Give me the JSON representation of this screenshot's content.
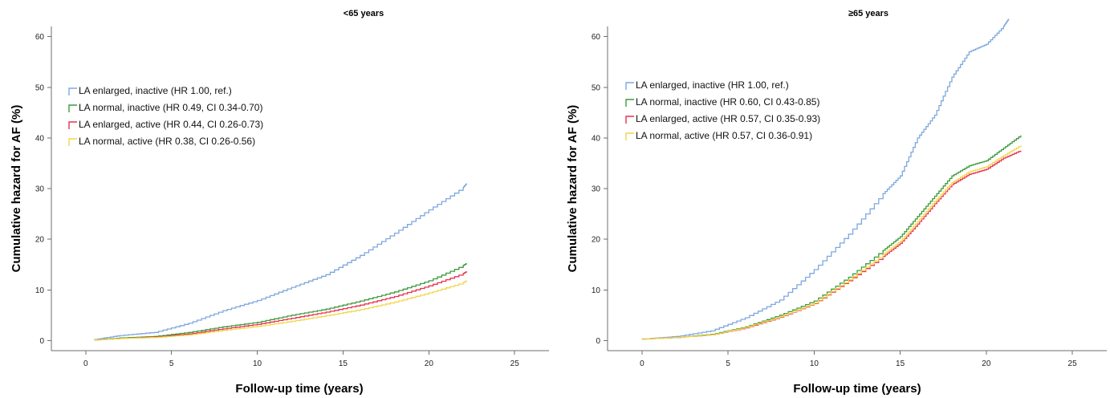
{
  "chart_data": [
    {
      "type": "line",
      "title": "<65 years",
      "xlabel": "Follow-up time (years)",
      "ylabel": "Cumulative hazard for AF (%)",
      "xlim": [
        -2,
        27
      ],
      "ylim": [
        -2,
        62
      ],
      "xticks": [
        0,
        5,
        10,
        15,
        20,
        25
      ],
      "yticks": [
        0,
        10,
        20,
        30,
        40,
        50,
        60
      ],
      "grid": false,
      "legend_position": "upper-left",
      "series": [
        {
          "name": "LA enlarged, inactive (HR 1.00, ref.)",
          "color": "#7ea8de",
          "x": [
            0.5,
            2,
            4,
            6,
            8,
            10,
            12,
            14,
            16,
            18,
            20,
            22,
            22.2
          ],
          "y": [
            0.2,
            1.0,
            1.6,
            3.4,
            5.9,
            7.9,
            10.5,
            13.0,
            16.8,
            21.2,
            25.8,
            30.2,
            31.0
          ]
        },
        {
          "name": "LA normal, inactive (HR 0.49, CI 0.34-0.70)",
          "color": "#3f9a3f",
          "x": [
            0.5,
            2,
            4,
            6,
            8,
            10,
            12,
            14,
            16,
            18,
            20,
            22,
            22.2
          ],
          "y": [
            0.1,
            0.5,
            0.8,
            1.6,
            2.7,
            3.6,
            5.0,
            6.2,
            7.8,
            9.6,
            11.8,
            14.8,
            15.2
          ]
        },
        {
          "name": "LA enlarged, active (HR 0.44, CI 0.26-0.73)",
          "color": "#e8314f",
          "x": [
            0.5,
            2,
            4,
            6,
            8,
            10,
            12,
            14,
            16,
            18,
            20,
            22,
            22.2
          ],
          "y": [
            0.1,
            0.4,
            0.7,
            1.3,
            2.3,
            3.2,
            4.4,
            5.6,
            7.0,
            8.7,
            10.8,
            13.2,
            13.6
          ]
        },
        {
          "name": "LA normal, active (HR 0.38, CI 0.26-0.56)",
          "color": "#f2d64a",
          "x": [
            0.5,
            2,
            4,
            6,
            8,
            10,
            12,
            14,
            16,
            18,
            20,
            22,
            22.2
          ],
          "y": [
            0.1,
            0.4,
            0.6,
            1.1,
            2.0,
            2.8,
            3.8,
            4.9,
            6.1,
            7.6,
            9.4,
            11.4,
            11.8
          ]
        }
      ]
    },
    {
      "type": "line",
      "title": "≥65 years",
      "xlabel": "Follow-up time (years)",
      "ylabel": "Cumulative hazard for AF (%)",
      "xlim": [
        -2,
        27
      ],
      "ylim": [
        -2,
        62
      ],
      "xticks": [
        0,
        5,
        10,
        15,
        20,
        25
      ],
      "yticks": [
        0,
        10,
        20,
        30,
        40,
        50,
        60
      ],
      "grid": false,
      "legend_position": "upper-left",
      "series": [
        {
          "name": "LA enlarged, inactive (HR 1.00, ref.)",
          "color": "#7ea8de",
          "x": [
            0,
            2,
            4,
            6,
            8,
            10,
            12,
            14,
            15,
            16,
            17,
            18,
            19,
            20,
            21,
            21.3
          ],
          "y": [
            0.3,
            0.8,
            1.9,
            4.5,
            8.0,
            14.0,
            21.0,
            29.0,
            32.5,
            40.0,
            44.5,
            52.0,
            57.0,
            58.5,
            62.0,
            63.5
          ]
        },
        {
          "name": "LA normal, inactive (HR 0.60, CI 0.43-0.85)",
          "color": "#3f9a3f",
          "x": [
            0,
            2,
            4,
            6,
            8,
            10,
            12,
            14,
            15,
            16,
            17,
            18,
            19,
            20,
            21,
            22
          ],
          "y": [
            0.3,
            0.6,
            1.2,
            2.7,
            5.0,
            7.8,
            12.5,
            17.8,
            20.5,
            24.5,
            28.5,
            32.5,
            34.5,
            35.5,
            38.0,
            40.5
          ]
        },
        {
          "name": "LA enlarged, active (HR 0.57, CI 0.35-0.93)",
          "color": "#e8314f",
          "x": [
            0,
            2,
            4,
            6,
            8,
            10,
            12,
            14,
            15,
            16,
            17,
            18,
            19,
            20,
            21,
            22
          ],
          "y": [
            0.3,
            0.6,
            1.1,
            2.5,
            4.6,
            7.3,
            11.8,
            16.6,
            19.2,
            23.0,
            27.0,
            30.8,
            32.8,
            33.8,
            36.0,
            37.5
          ]
        },
        {
          "name": "LA normal, active (HR 0.57, CI 0.36-0.91)",
          "color": "#f2d64a",
          "x": [
            0,
            2,
            4,
            6,
            8,
            10,
            12,
            14,
            15,
            16,
            17,
            18,
            19,
            20,
            21,
            22
          ],
          "y": [
            0.3,
            0.6,
            1.1,
            2.6,
            4.7,
            7.4,
            12.0,
            17.0,
            19.6,
            23.5,
            27.5,
            31.2,
            33.3,
            34.3,
            36.5,
            38.5
          ]
        }
      ]
    }
  ]
}
